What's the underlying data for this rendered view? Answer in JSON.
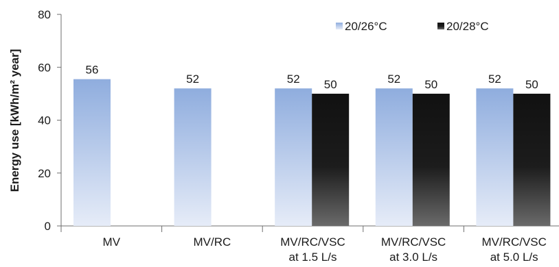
{
  "chart_data": {
    "type": "bar",
    "ylabel": "Energy use [kWh/m² year]",
    "ylim": [
      0,
      80
    ],
    "yticks": [
      "0",
      "20",
      "40",
      "60",
      "80"
    ],
    "categories": [
      [
        "MV"
      ],
      [
        "MV/RC"
      ],
      [
        "MV/RC/VSC",
        "at 1.5 L/s"
      ],
      [
        "MV/RC/VSC",
        "at 3.0 L/s"
      ],
      [
        "MV/RC/VSC",
        "at 5.0 L/s"
      ]
    ],
    "series": [
      {
        "name": "20/26°C",
        "values": [
          55.5,
          52,
          52,
          52,
          52
        ],
        "labels": [
          "56",
          "52",
          "52",
          "52",
          "52"
        ],
        "color": "#9db7e6"
      },
      {
        "name": "20/28°C",
        "values": [
          null,
          null,
          50,
          50,
          50
        ],
        "labels": [
          null,
          null,
          "50",
          "50",
          "50"
        ],
        "color": "#262626"
      }
    ],
    "legend_position": "top-right",
    "grid": false
  }
}
